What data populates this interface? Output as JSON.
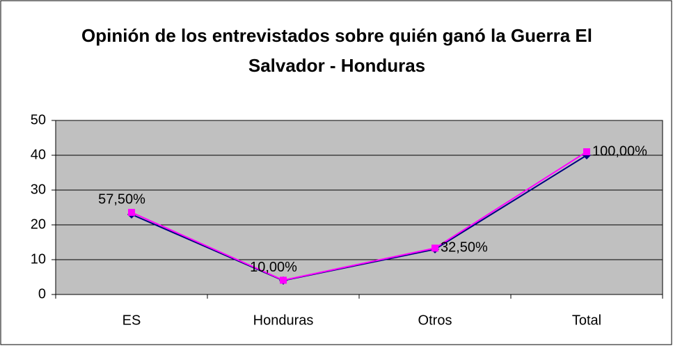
{
  "chart_data": {
    "type": "line",
    "title": "Opinión de los entrevistados sobre quién ganó la Guerra El Salvador - Honduras",
    "categories": [
      "ES",
      "Honduras",
      "Otros",
      "Total"
    ],
    "stacked": true,
    "series": [
      {
        "color": "#000080",
        "marker": "diamond",
        "values": [
          23,
          4,
          13,
          40
        ]
      },
      {
        "color": "#ff00ff",
        "marker": "square",
        "values": [
          0.575,
          0.1,
          0.325,
          1
        ],
        "value_labels": [
          "57,50%",
          "10,00%",
          "32,50%",
          "100,00%"
        ]
      }
    ],
    "ylim": [
      0,
      50
    ],
    "yticks": [
      0,
      10,
      20,
      30,
      40,
      50
    ],
    "grid": true,
    "plot_background": "#c0c0c0"
  }
}
